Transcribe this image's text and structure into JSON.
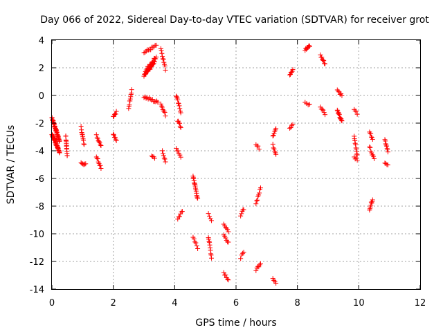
{
  "chart_data": {
    "type": "scatter",
    "title": "Day 066 of 2022, Sidereal Day-to-day VTEC variation (SDTVAR) for receiver grot",
    "xlabel": "GPS time / hours",
    "ylabel": "SDTVAR / TECUs",
    "xlim": [
      0,
      12
    ],
    "ylim": [
      -14,
      4
    ],
    "xticks": [
      "0",
      "2",
      "4",
      "6",
      "8",
      "10",
      "12"
    ],
    "yticks": [
      "-14",
      "-12",
      "-10",
      "-8",
      "-6",
      "-4",
      "-2",
      "0",
      "2",
      "4"
    ],
    "grid": true,
    "marker": "plus",
    "color": "#ff0000",
    "segments": [
      {
        "x0": 0.0,
        "x1": 0.25,
        "y0": -1.6,
        "y1": -3.3,
        "n": 40
      },
      {
        "x0": 0.0,
        "x1": 0.25,
        "y0": -2.8,
        "y1": -4.1,
        "n": 30
      },
      {
        "x0": 0.05,
        "x1": 0.2,
        "y0": -3.0,
        "y1": -3.8,
        "n": 18
      },
      {
        "x0": 0.45,
        "x1": 0.5,
        "y0": -2.9,
        "y1": -4.4,
        "n": 14
      },
      {
        "x0": 0.95,
        "x1": 1.05,
        "y0": -2.3,
        "y1": -3.6,
        "n": 10
      },
      {
        "x0": 0.95,
        "x1": 1.1,
        "y0": -4.8,
        "y1": -5.0,
        "n": 6
      },
      {
        "x0": 1.45,
        "x1": 1.6,
        "y0": -2.9,
        "y1": -3.6,
        "n": 8
      },
      {
        "x0": 1.45,
        "x1": 1.6,
        "y0": -4.4,
        "y1": -5.2,
        "n": 8
      },
      {
        "x0": 2.0,
        "x1": 2.1,
        "y0": -1.5,
        "y1": -1.2,
        "n": 6
      },
      {
        "x0": 2.0,
        "x1": 2.1,
        "y0": -2.8,
        "y1": -3.3,
        "n": 6
      },
      {
        "x0": 2.5,
        "x1": 2.6,
        "y0": -0.9,
        "y1": 0.4,
        "n": 10
      },
      {
        "x0": 3.0,
        "x1": 3.4,
        "y0": 3.1,
        "y1": 3.6,
        "n": 12
      },
      {
        "x0": 3.0,
        "x1": 3.35,
        "y0": 1.4,
        "y1": 2.4,
        "n": 24
      },
      {
        "x0": 3.05,
        "x1": 3.4,
        "y0": 1.8,
        "y1": 2.8,
        "n": 16
      },
      {
        "x0": 3.0,
        "x1": 3.45,
        "y0": -0.1,
        "y1": -0.5,
        "n": 14
      },
      {
        "x0": 3.25,
        "x1": 3.35,
        "y0": -4.3,
        "y1": -4.5,
        "n": 4
      },
      {
        "x0": 3.55,
        "x1": 3.7,
        "y0": 3.4,
        "y1": 1.9,
        "n": 10
      },
      {
        "x0": 3.55,
        "x1": 3.7,
        "y0": -0.6,
        "y1": -1.4,
        "n": 8
      },
      {
        "x0": 3.6,
        "x1": 3.7,
        "y0": -4.0,
        "y1": -4.8,
        "n": 6
      },
      {
        "x0": 4.05,
        "x1": 4.2,
        "y0": 0.0,
        "y1": -1.2,
        "n": 10
      },
      {
        "x0": 4.1,
        "x1": 4.2,
        "y0": -1.8,
        "y1": -2.3,
        "n": 6
      },
      {
        "x0": 4.05,
        "x1": 4.2,
        "y0": -3.8,
        "y1": -4.5,
        "n": 6
      },
      {
        "x0": 4.1,
        "x1": 4.25,
        "y0": -8.9,
        "y1": -8.4,
        "n": 6
      },
      {
        "x0": 4.6,
        "x1": 4.75,
        "y0": -5.8,
        "y1": -7.5,
        "n": 16
      },
      {
        "x0": 4.6,
        "x1": 4.75,
        "y0": -10.3,
        "y1": -11.0,
        "n": 6
      },
      {
        "x0": 5.1,
        "x1": 5.2,
        "y0": -8.6,
        "y1": -9.0,
        "n": 4
      },
      {
        "x0": 5.1,
        "x1": 5.2,
        "y0": -10.2,
        "y1": -11.7,
        "n": 10
      },
      {
        "x0": 5.6,
        "x1": 5.75,
        "y0": -9.3,
        "y1": -9.8,
        "n": 6
      },
      {
        "x0": 5.6,
        "x1": 5.75,
        "y0": -10.1,
        "y1": -10.6,
        "n": 6
      },
      {
        "x0": 5.6,
        "x1": 5.75,
        "y0": -12.8,
        "y1": -13.3,
        "n": 6
      },
      {
        "x0": 6.15,
        "x1": 6.25,
        "y0": -8.7,
        "y1": -8.2,
        "n": 5
      },
      {
        "x0": 6.15,
        "x1": 6.25,
        "y0": -11.7,
        "y1": -11.4,
        "n": 4
      },
      {
        "x0": 6.65,
        "x1": 6.75,
        "y0": -3.6,
        "y1": -3.8,
        "n": 4
      },
      {
        "x0": 6.65,
        "x1": 6.8,
        "y0": -7.8,
        "y1": -6.7,
        "n": 8
      },
      {
        "x0": 6.65,
        "x1": 6.8,
        "y0": -12.6,
        "y1": -12.1,
        "n": 6
      },
      {
        "x0": 7.2,
        "x1": 7.3,
        "y0": -2.9,
        "y1": -2.4,
        "n": 6
      },
      {
        "x0": 7.2,
        "x1": 7.3,
        "y0": -3.6,
        "y1": -4.2,
        "n": 6
      },
      {
        "x0": 7.2,
        "x1": 7.3,
        "y0": -13.2,
        "y1": -13.5,
        "n": 4
      },
      {
        "x0": 7.75,
        "x1": 7.85,
        "y0": 1.5,
        "y1": 1.8,
        "n": 6
      },
      {
        "x0": 7.75,
        "x1": 7.85,
        "y0": -2.4,
        "y1": -2.1,
        "n": 4
      },
      {
        "x0": 8.25,
        "x1": 8.4,
        "y0": 3.3,
        "y1": 3.6,
        "n": 8
      },
      {
        "x0": 8.25,
        "x1": 8.4,
        "y0": -0.5,
        "y1": -0.7,
        "n": 4
      },
      {
        "x0": 8.75,
        "x1": 8.9,
        "y0": 2.9,
        "y1": 2.3,
        "n": 8
      },
      {
        "x0": 8.75,
        "x1": 8.9,
        "y0": -0.8,
        "y1": -1.3,
        "n": 6
      },
      {
        "x0": 9.3,
        "x1": 9.45,
        "y0": 0.4,
        "y1": 0.0,
        "n": 6
      },
      {
        "x0": 9.3,
        "x1": 9.45,
        "y0": -1.1,
        "y1": -1.9,
        "n": 12
      },
      {
        "x0": 9.85,
        "x1": 9.95,
        "y0": -1.0,
        "y1": -1.3,
        "n": 4
      },
      {
        "x0": 9.85,
        "x1": 9.95,
        "y0": -3.0,
        "y1": -4.3,
        "n": 10
      },
      {
        "x0": 9.85,
        "x1": 9.95,
        "y0": -4.4,
        "y1": -4.7,
        "n": 4
      },
      {
        "x0": 10.35,
        "x1": 10.45,
        "y0": -2.6,
        "y1": -3.2,
        "n": 6
      },
      {
        "x0": 10.35,
        "x1": 10.5,
        "y0": -3.7,
        "y1": -4.6,
        "n": 8
      },
      {
        "x0": 10.35,
        "x1": 10.45,
        "y0": -8.2,
        "y1": -7.5,
        "n": 8
      },
      {
        "x0": 10.85,
        "x1": 10.95,
        "y0": -3.2,
        "y1": -4.0,
        "n": 8
      },
      {
        "x0": 10.85,
        "x1": 10.95,
        "y0": -4.9,
        "y1": -5.1,
        "n": 4
      }
    ]
  }
}
